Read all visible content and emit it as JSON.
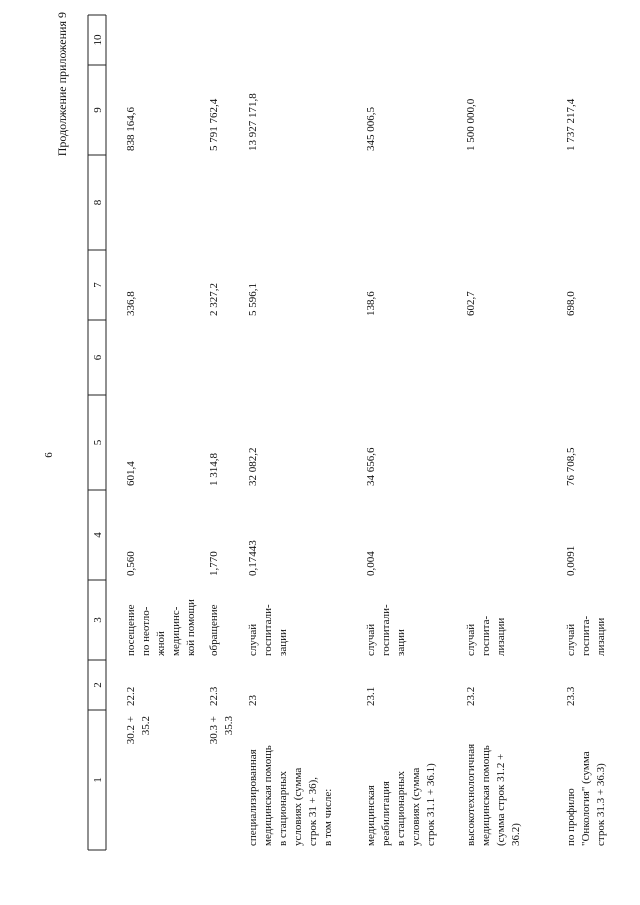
{
  "page_number": "6",
  "header": {
    "title": "Продолжение приложения 9"
  },
  "table": {
    "columns": [
      "1",
      "2",
      "3",
      "4",
      "5",
      "6",
      "7",
      "8",
      "9",
      "10"
    ],
    "rows": [
      [
        [
          "30.2 +",
          "35.2"
        ],
        [
          "22.2"
        ],
        [
          "посещение",
          "по неотло-",
          "жной",
          "медицинс-",
          "кой помощи"
        ],
        [
          "0,560"
        ],
        [
          "601,4"
        ],
        [],
        [
          "336,8"
        ],
        [],
        [
          "838 164,6"
        ],
        []
      ],
      [
        [
          "30.3 +",
          "35.3"
        ],
        [
          "22.3"
        ],
        [
          "обращение"
        ],
        [
          "1,770"
        ],
        [
          "1 314,8"
        ],
        [],
        [
          "2 327,2"
        ],
        [],
        [
          "5 791 762,4"
        ],
        []
      ],
      [
        [
          "специализированная",
          "медицинская помощь",
          "в стационарных",
          "условиях (сумма",
          "строк 31 + 36),",
          "в том числе:"
        ],
        [
          "23"
        ],
        [
          "случай",
          "госпитали-",
          "зации"
        ],
        [
          "0,17443"
        ],
        [
          "32 082,2"
        ],
        [],
        [
          "5 596,1"
        ],
        [],
        [
          "13 927 171,8"
        ],
        []
      ],
      [
        [
          "медицинская",
          "реабилитация",
          "в стационарных",
          "условиях (сумма",
          "строк 31.1 + 36.1)"
        ],
        [
          "23.1"
        ],
        [
          "случай",
          "госпитали-",
          "зации"
        ],
        [
          "0,004"
        ],
        [
          "34 656,6"
        ],
        [],
        [
          "138,6"
        ],
        [],
        [
          "345 006,5"
        ],
        []
      ],
      [
        [
          "высокотехнологичная",
          "медицинская помощь",
          "(сумма строк 31.2 +",
          "36.2)"
        ],
        [
          "23.2"
        ],
        [
          "случай",
          "госпита-",
          "лизации"
        ],
        [],
        [],
        [],
        [
          "602,7"
        ],
        [],
        [
          "1 500 000,0"
        ],
        []
      ],
      [
        [
          "по профилю",
          "\"Онкология\" (сумма",
          "строк 31.3 + 36.3)"
        ],
        [
          "23.3"
        ],
        [
          "случай",
          "госпита-",
          "лизации"
        ],
        [
          "0,0091"
        ],
        [
          "76 708,5"
        ],
        [],
        [
          "698,0"
        ],
        [],
        [
          "1 737 217,4"
        ],
        []
      ]
    ]
  }
}
